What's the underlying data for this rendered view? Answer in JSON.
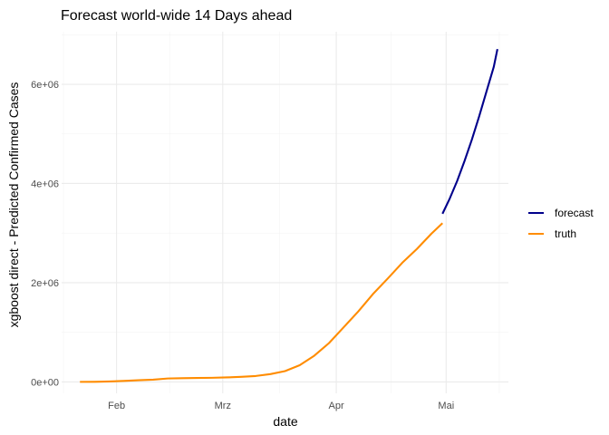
{
  "chart_data": {
    "type": "line",
    "title": "Forecast world-wide 14 Days ahead",
    "xlabel": "date",
    "ylabel": "xgboost direct - Predicted Confirmed Cases",
    "x_ticks": [
      {
        "date": "2020-02-01",
        "label": "Feb"
      },
      {
        "date": "2020-03-01",
        "label": "Mrz"
      },
      {
        "date": "2020-04-01",
        "label": "Apr"
      },
      {
        "date": "2020-05-01",
        "label": "Mai"
      }
    ],
    "y_ticks": [
      {
        "value": 0,
        "label": "0e+00"
      },
      {
        "value": 2000000,
        "label": "2e+06"
      },
      {
        "value": 4000000,
        "label": "4e+06"
      },
      {
        "value": 6000000,
        "label": "6e+06"
      }
    ],
    "xlim": [
      "2020-01-17",
      "2020-05-18"
    ],
    "ylim": [
      -230000,
      7060000
    ],
    "grid": true,
    "legend": "right",
    "series": [
      {
        "name": "truth",
        "color": "#ff8c00",
        "points": [
          [
            "2020-01-22",
            557
          ],
          [
            "2020-01-26",
            2118
          ],
          [
            "2020-01-30",
            8234
          ],
          [
            "2020-02-03",
            19887
          ],
          [
            "2020-02-07",
            34392
          ],
          [
            "2020-02-11",
            45220
          ],
          [
            "2020-02-15",
            69000
          ],
          [
            "2020-02-19",
            75641
          ],
          [
            "2020-02-23",
            79000
          ],
          [
            "2020-02-27",
            82756
          ],
          [
            "2020-03-02",
            90306
          ],
          [
            "2020-03-06",
            101784
          ],
          [
            "2020-03-10",
            119157
          ],
          [
            "2020-03-14",
            156640
          ],
          [
            "2020-03-18",
            218000
          ],
          [
            "2020-03-22",
            337000
          ],
          [
            "2020-03-26",
            529000
          ],
          [
            "2020-03-30",
            782000
          ],
          [
            "2020-04-03",
            1100000
          ],
          [
            "2020-04-07",
            1420000
          ],
          [
            "2020-04-11",
            1770000
          ],
          [
            "2020-04-15",
            2080000
          ],
          [
            "2020-04-19",
            2400000
          ],
          [
            "2020-04-23",
            2680000
          ],
          [
            "2020-04-27",
            2990000
          ],
          [
            "2020-04-30",
            3200000
          ]
        ]
      },
      {
        "name": "forecast",
        "color": "#00008b",
        "points": [
          [
            "2020-04-30",
            3390000
          ],
          [
            "2020-05-02",
            3700000
          ],
          [
            "2020-05-04",
            4050000
          ],
          [
            "2020-05-06",
            4450000
          ],
          [
            "2020-05-08",
            4880000
          ],
          [
            "2020-05-10",
            5350000
          ],
          [
            "2020-05-12",
            5850000
          ],
          [
            "2020-05-14",
            6350000
          ],
          [
            "2020-05-15",
            6710000
          ]
        ]
      }
    ],
    "legend_order": [
      "forecast",
      "truth"
    ]
  }
}
